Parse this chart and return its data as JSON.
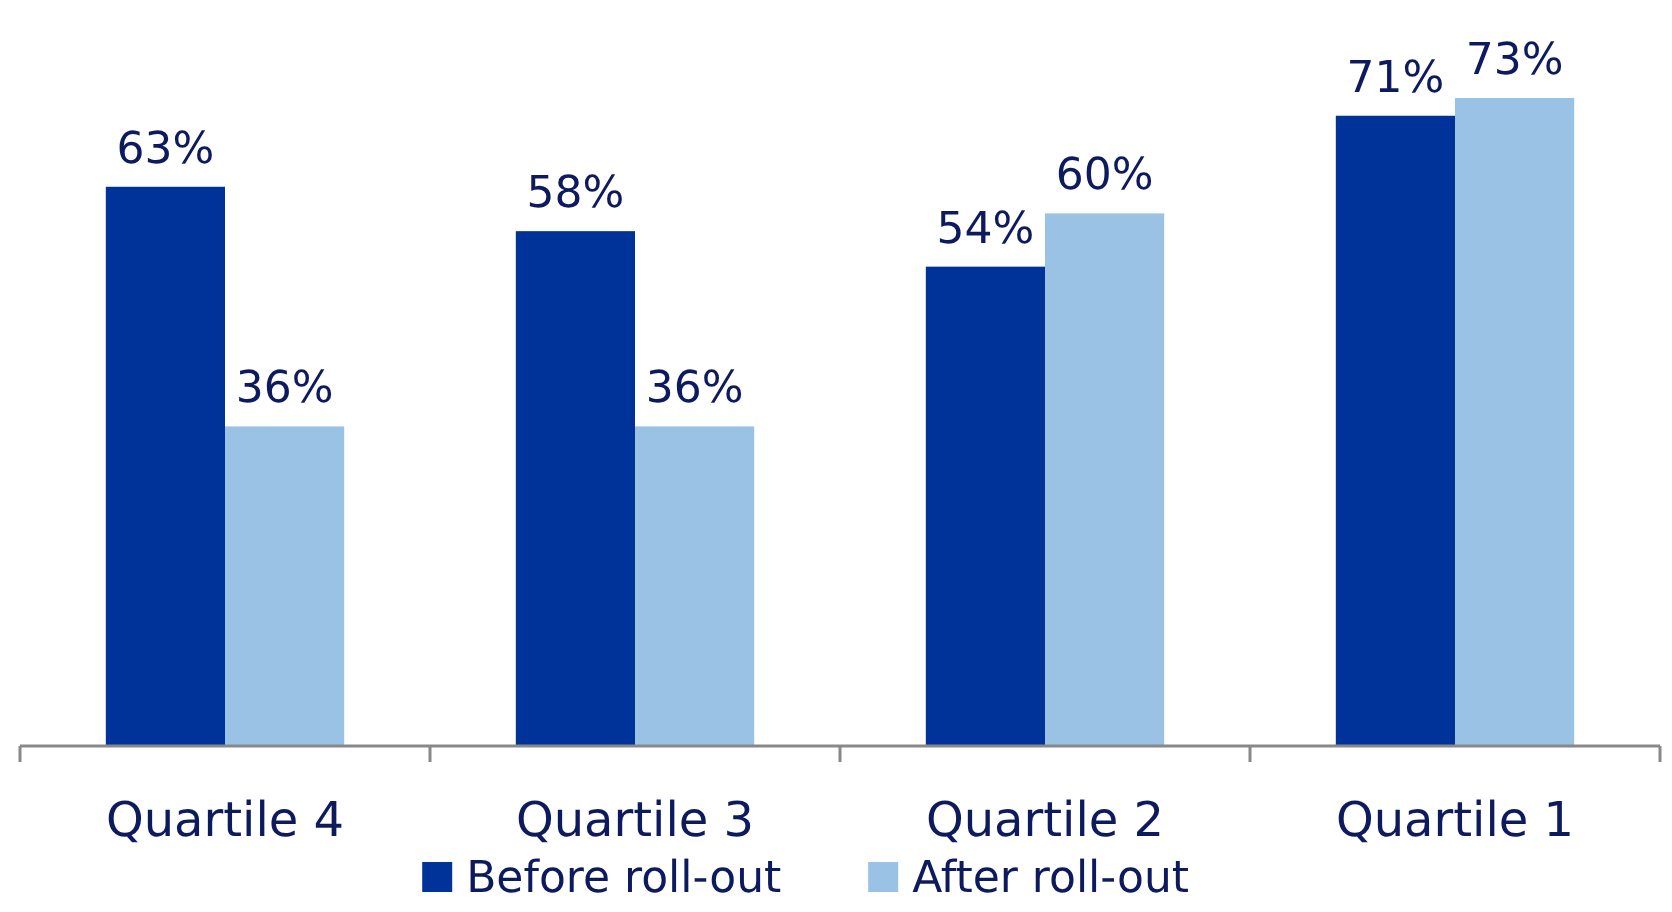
{
  "chart_data": {
    "type": "bar",
    "categories": [
      "Quartile 4",
      "Quartile 3",
      "Quartile 2",
      "Quartile 1"
    ],
    "legend": "bottom",
    "series": [
      {
        "name": "Before roll-out",
        "color": "#003399",
        "values": [
          63,
          58,
          54,
          71
        ],
        "value_labels": [
          "63%",
          "58%",
          "54%",
          "71%"
        ]
      },
      {
        "name": "After roll-out",
        "color": "#99c2e4",
        "values": [
          36,
          36,
          60,
          73
        ],
        "value_labels": [
          "36%",
          "36%",
          "60%",
          "73%"
        ]
      }
    ]
  }
}
